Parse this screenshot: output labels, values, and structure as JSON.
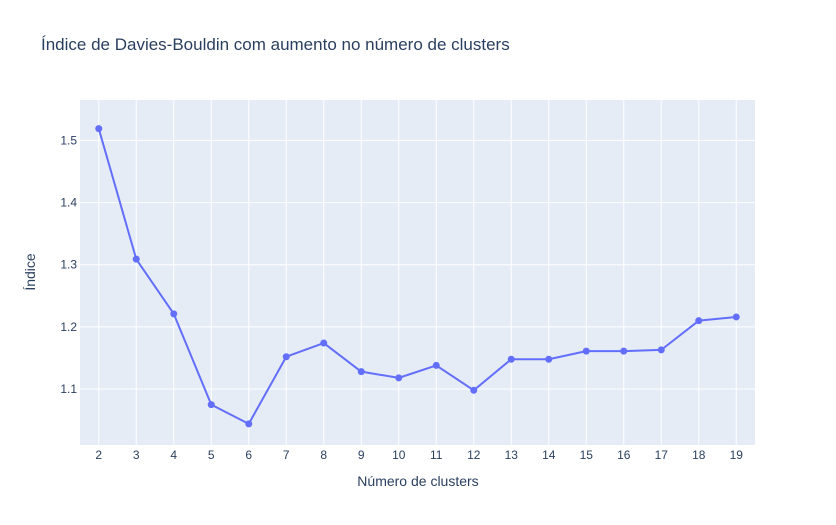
{
  "chart_data": {
    "type": "line",
    "title": "Índice de Davies-Bouldin com aumento no número de clusters",
    "xlabel": "Número de clusters",
    "ylabel": "Índice",
    "x": [
      2,
      3,
      4,
      5,
      6,
      7,
      8,
      9,
      10,
      11,
      12,
      13,
      14,
      15,
      16,
      17,
      18,
      19
    ],
    "series": [
      {
        "values": [
          1.519,
          1.309,
          1.221,
          1.075,
          1.044,
          1.152,
          1.174,
          1.128,
          1.118,
          1.138,
          1.098,
          1.148,
          1.148,
          1.161,
          1.161,
          1.163,
          1.21,
          1.216
        ]
      }
    ],
    "xlim": [
      1.5,
      19.5
    ],
    "ylim": [
      1.01,
      1.565
    ],
    "y_ticks": [
      1.1,
      1.2,
      1.3,
      1.4,
      1.5
    ],
    "y_tick_labels": [
      "1.1",
      "1.2",
      "1.3",
      "1.4",
      "1.5"
    ],
    "grid": true,
    "colors": {
      "line": "#636efa",
      "plot_background": "#e5ecf6",
      "grid": "#ffffff",
      "text": "#2a3f5f"
    }
  }
}
